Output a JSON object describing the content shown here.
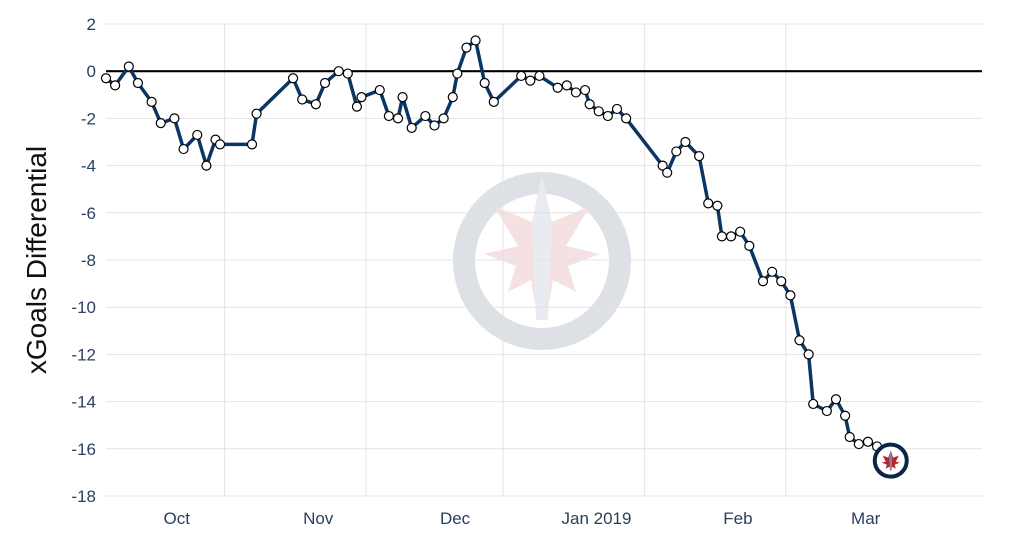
{
  "chart_data": {
    "type": "line",
    "title": "",
    "xlabel": "",
    "ylabel": "xGoals Differential",
    "x_ticks": [
      {
        "label": "Oct",
        "date": "2018-10-01"
      },
      {
        "label": "Nov",
        "date": "2018-11-01"
      },
      {
        "label": "Dec",
        "date": "2018-12-01"
      },
      {
        "label": "Jan 2019",
        "date": "2019-01-01"
      },
      {
        "label": "Feb",
        "date": "2019-02-01"
      },
      {
        "label": "Mar",
        "date": "2019-03-01"
      }
    ],
    "x_gridlines": [
      "2018-10-15",
      "2018-11-15",
      "2018-12-15",
      "2019-01-15",
      "2019-02-15"
    ],
    "xlim": [
      "2018-09-19",
      "2019-03-30"
    ],
    "ylim": [
      -18,
      2
    ],
    "y_ticks": [
      2,
      0,
      -2,
      -4,
      -6,
      -8,
      -10,
      -12,
      -14,
      -16,
      -18
    ],
    "zero_line": true,
    "grid": true,
    "line_color": "#0b3563",
    "marker_fill": "#ffffff",
    "watermark": "winnipeg-jets-logo",
    "last_marker": "winnipeg-jets-logo",
    "series": [
      {
        "points": [
          [
            "2018-09-19",
            -0.3
          ],
          [
            "2018-09-21",
            -0.6
          ],
          [
            "2018-09-24",
            0.2
          ],
          [
            "2018-09-26",
            -0.5
          ],
          [
            "2018-09-29",
            -1.3
          ],
          [
            "2018-10-01",
            -2.2
          ],
          [
            "2018-10-04",
            -2.0
          ],
          [
            "2018-10-06",
            -3.3
          ],
          [
            "2018-10-09",
            -2.7
          ],
          [
            "2018-10-11",
            -4.0
          ],
          [
            "2018-10-13",
            -2.9
          ],
          [
            "2018-10-14",
            -3.1
          ],
          [
            "2018-10-21",
            -3.1
          ],
          [
            "2018-10-22",
            -1.8
          ],
          [
            "2018-10-30",
            -0.3
          ],
          [
            "2018-11-01",
            -1.2
          ],
          [
            "2018-11-04",
            -1.4
          ],
          [
            "2018-11-06",
            -0.5
          ],
          [
            "2018-11-09",
            0.0
          ],
          [
            "2018-11-11",
            -0.1
          ],
          [
            "2018-11-13",
            -1.5
          ],
          [
            "2018-11-14",
            -1.1
          ],
          [
            "2018-11-18",
            -0.8
          ],
          [
            "2018-11-20",
            -1.9
          ],
          [
            "2018-11-22",
            -2.0
          ],
          [
            "2018-11-23",
            -1.1
          ],
          [
            "2018-11-25",
            -2.4
          ],
          [
            "2018-11-28",
            -1.9
          ],
          [
            "2018-11-30",
            -2.3
          ],
          [
            "2018-12-02",
            -2.0
          ],
          [
            "2018-12-04",
            -1.1
          ],
          [
            "2018-12-05",
            -0.1
          ],
          [
            "2018-12-07",
            1.0
          ],
          [
            "2018-12-09",
            1.3
          ],
          [
            "2018-12-11",
            -0.5
          ],
          [
            "2018-12-13",
            -1.3
          ],
          [
            "2018-12-19",
            -0.2
          ],
          [
            "2018-12-21",
            -0.4
          ],
          [
            "2018-12-23",
            -0.2
          ],
          [
            "2018-12-27",
            -0.7
          ],
          [
            "2018-12-29",
            -0.6
          ],
          [
            "2018-12-31",
            -0.9
          ],
          [
            "2019-01-02",
            -0.8
          ],
          [
            "2019-01-03",
            -1.4
          ],
          [
            "2019-01-05",
            -1.7
          ],
          [
            "2019-01-07",
            -1.9
          ],
          [
            "2019-01-09",
            -1.6
          ],
          [
            "2019-01-11",
            -2.0
          ],
          [
            "2019-01-19",
            -4.0
          ],
          [
            "2019-01-20",
            -4.3
          ],
          [
            "2019-01-22",
            -3.4
          ],
          [
            "2019-01-24",
            -3.0
          ],
          [
            "2019-01-27",
            -3.6
          ],
          [
            "2019-01-29",
            -5.6
          ],
          [
            "2019-01-31",
            -5.7
          ],
          [
            "2019-02-01",
            -7.0
          ],
          [
            "2019-02-03",
            -7.0
          ],
          [
            "2019-02-05",
            -6.8
          ],
          [
            "2019-02-07",
            -7.4
          ],
          [
            "2019-02-10",
            -8.9
          ],
          [
            "2019-02-12",
            -8.5
          ],
          [
            "2019-02-14",
            -8.9
          ],
          [
            "2019-02-16",
            -9.5
          ],
          [
            "2019-02-18",
            -11.4
          ],
          [
            "2019-02-20",
            -12.0
          ],
          [
            "2019-02-21",
            -14.1
          ],
          [
            "2019-02-24",
            -14.4
          ],
          [
            "2019-02-26",
            -13.9
          ],
          [
            "2019-02-28",
            -14.6
          ],
          [
            "2019-03-01",
            -15.5
          ],
          [
            "2019-03-03",
            -15.8
          ],
          [
            "2019-03-05",
            -15.7
          ],
          [
            "2019-03-07",
            -15.9
          ],
          [
            "2019-03-08",
            -16.6
          ],
          [
            "2019-03-10",
            -16.5
          ]
        ]
      }
    ]
  }
}
